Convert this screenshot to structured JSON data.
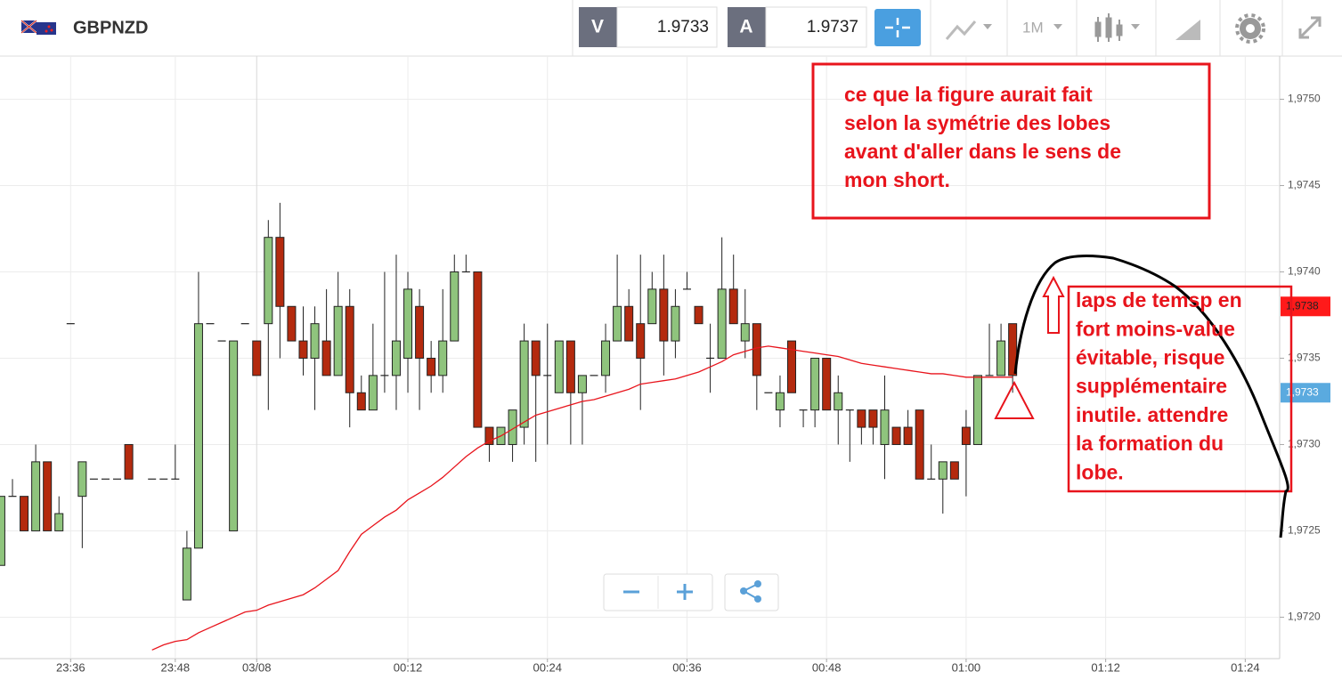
{
  "toolbar": {
    "symbol": "GBPNZD",
    "bid_label": "V",
    "bid": 1.9733,
    "ask_label": "A",
    "ask": 1.9737,
    "timeframe": "1M"
  },
  "chart_data": {
    "type": "candlestick",
    "categories": [
      null,
      null,
      null,
      null,
      null,
      null,
      "23:36",
      null,
      null,
      null,
      null,
      null,
      null,
      null,
      null,
      "23:48",
      null,
      null,
      null,
      null,
      null,
      null,
      "03/08",
      null,
      null,
      null,
      null,
      null,
      null,
      null,
      null,
      null,
      null,
      null,
      null,
      "00:12",
      null,
      null,
      null,
      null,
      null,
      null,
      null,
      null,
      null,
      null,
      null,
      "00:24",
      null,
      null,
      null,
      null,
      null,
      null,
      null,
      null,
      null,
      null,
      null,
      "00:36",
      null,
      null,
      null,
      null,
      null,
      null,
      null,
      null,
      null,
      null,
      null,
      "00:48",
      null,
      null,
      null,
      null,
      null,
      null,
      null,
      null,
      null,
      null,
      null,
      "01:00",
      null,
      null,
      null,
      null,
      null,
      null,
      null,
      null,
      null,
      null,
      null,
      "01:12",
      null,
      null,
      null,
      null,
      null,
      null,
      null,
      null,
      null,
      null,
      null,
      "01:24",
      null,
      null
    ],
    "ohlc": {
      "open": [
        1.9723,
        1.9727,
        1.9727,
        1.9725,
        1.9729,
        1.9725,
        1.9737,
        1.9727,
        1.9728,
        1.9728,
        1.9728,
        1.973,
        null,
        1.9728,
        1.9728,
        1.9728,
        1.9721,
        1.9724,
        1.9737,
        1.9736,
        1.9725,
        1.9737,
        1.9736,
        1.9737,
        1.9742,
        1.9738,
        1.9736,
        1.9735,
        1.9736,
        1.9734,
        1.9738,
        1.9733,
        1.9732,
        1.9734,
        1.9734,
        1.9735,
        1.9738,
        1.9735,
        1.9734,
        1.9736,
        1.974,
        1.974,
        1.9731,
        1.973,
        1.973,
        1.9731,
        1.9736,
        1.9734,
        1.9733,
        1.9736,
        1.9733,
        1.9734,
        1.9734,
        1.9736,
        1.9738,
        1.9737,
        1.9737,
        1.9739,
        1.9736,
        1.9739,
        1.9738,
        1.9735,
        1.9735,
        1.9739,
        1.9736,
        1.9737,
        1.9733,
        1.9732,
        1.9736,
        1.9732,
        1.9732,
        1.9735,
        1.9732,
        1.9732,
        1.9732,
        1.9732,
        1.973,
        1.9731,
        1.9731,
        1.9732,
        1.9728,
        1.9728,
        1.9729,
        1.9731,
        1.973,
        1.9734,
        1.9734,
        1.9737,
        null,
        null,
        null,
        null,
        null,
        null,
        null,
        null,
        null,
        null,
        null,
        null,
        null,
        null,
        null,
        null,
        null,
        null,
        null,
        null,
        null,
        null
      ],
      "high": [
        1.9727,
        1.9728,
        1.9727,
        1.973,
        1.9729,
        1.9727,
        1.9737,
        1.9729,
        1.9728,
        1.9728,
        1.9728,
        1.973,
        null,
        1.9728,
        1.9728,
        1.973,
        1.9725,
        1.974,
        1.9737,
        1.9736,
        1.9736,
        1.9737,
        1.9736,
        1.9743,
        1.9744,
        1.9738,
        1.9738,
        1.9738,
        1.9739,
        1.974,
        1.9739,
        1.9734,
        1.9737,
        1.974,
        1.9741,
        1.974,
        1.9739,
        1.9736,
        1.9739,
        1.9741,
        1.9741,
        1.974,
        1.9731,
        1.9731,
        1.9732,
        1.9737,
        1.9736,
        1.9737,
        1.9736,
        1.9736,
        1.9734,
        1.9734,
        1.9737,
        1.9741,
        1.9739,
        1.9741,
        1.974,
        1.9741,
        1.9739,
        1.974,
        1.9738,
        1.9737,
        1.9742,
        1.9741,
        1.9739,
        1.9737,
        1.9733,
        1.9734,
        1.9736,
        1.9732,
        1.9735,
        1.9735,
        1.9734,
        1.9732,
        1.9732,
        1.9732,
        1.9734,
        1.9731,
        1.9732,
        1.9732,
        1.973,
        1.9729,
        1.9729,
        1.9732,
        1.9734,
        1.9737,
        1.9737,
        1.9737,
        null,
        null,
        null,
        null,
        null,
        null,
        null,
        null,
        null,
        null,
        null,
        null,
        null,
        null,
        null,
        null,
        null,
        null,
        null,
        null,
        null,
        null
      ],
      "low": [
        1.9723,
        1.9727,
        1.9725,
        1.9725,
        1.9725,
        1.9725,
        1.9737,
        1.9724,
        1.9728,
        1.9728,
        1.9728,
        1.9728,
        null,
        1.9728,
        1.9728,
        1.9728,
        1.9721,
        1.9724,
        1.9737,
        1.9736,
        1.9725,
        1.9737,
        1.9734,
        1.9732,
        1.9735,
        1.9736,
        1.9734,
        1.9732,
        1.9734,
        1.9734,
        1.9731,
        1.9732,
        1.9732,
        1.9733,
        1.9732,
        1.9733,
        1.9732,
        1.9733,
        1.9733,
        1.9736,
        1.974,
        1.9731,
        1.9729,
        1.973,
        1.9729,
        1.973,
        1.9729,
        1.973,
        1.9733,
        1.973,
        1.973,
        1.9734,
        1.9733,
        1.9736,
        1.9736,
        1.9732,
        1.9737,
        1.9734,
        1.9735,
        1.9739,
        1.9737,
        1.9733,
        1.9735,
        1.9737,
        1.9735,
        1.9732,
        1.9733,
        1.9731,
        1.9733,
        1.9731,
        1.9731,
        1.9732,
        1.973,
        1.9729,
        1.973,
        1.973,
        1.9728,
        1.973,
        1.973,
        1.9728,
        1.9728,
        1.9726,
        1.9728,
        1.9727,
        1.973,
        1.9734,
        1.9734,
        1.9733,
        null,
        null,
        null,
        null,
        null,
        null,
        null,
        null,
        null,
        null,
        null,
        null,
        null,
        null,
        null,
        null,
        null,
        null,
        null,
        null,
        null,
        null
      ],
      "close": [
        1.9727,
        1.9727,
        1.9725,
        1.9729,
        1.9725,
        1.9726,
        1.9737,
        1.9729,
        1.9728,
        1.9728,
        1.9728,
        1.9728,
        null,
        1.9728,
        1.9728,
        1.9728,
        1.9724,
        1.9737,
        1.9737,
        1.9736,
        1.9736,
        1.9737,
        1.9734,
        1.9742,
        1.9738,
        1.9736,
        1.9735,
        1.9737,
        1.9734,
        1.9738,
        1.9733,
        1.9732,
        1.9734,
        1.9734,
        1.9736,
        1.9739,
        1.9735,
        1.9734,
        1.9736,
        1.974,
        1.974,
        1.9731,
        1.973,
        1.9731,
        1.9732,
        1.9736,
        1.9734,
        1.9734,
        1.9736,
        1.9733,
        1.9734,
        1.9734,
        1.9736,
        1.9738,
        1.9736,
        1.9735,
        1.9739,
        1.9736,
        1.9738,
        1.9739,
        1.9737,
        1.9735,
        1.9739,
        1.9737,
        1.9737,
        1.9734,
        1.9733,
        1.9733,
        1.9733,
        1.9732,
        1.9735,
        1.9732,
        1.9733,
        1.9732,
        1.9731,
        1.9731,
        1.9732,
        1.973,
        1.973,
        1.9728,
        1.9728,
        1.9729,
        1.9728,
        1.973,
        1.9734,
        1.9734,
        1.9736,
        1.9734,
        null,
        null,
        null,
        null,
        null,
        null,
        null,
        null,
        null,
        null,
        null,
        null,
        null,
        null,
        null,
        null,
        null,
        null,
        null,
        null,
        null,
        null
      ]
    },
    "up_color": "#8fc47d",
    "down_color": "#b42a0e",
    "moving_average": {
      "color": "#e8141c",
      "values": [
        null,
        null,
        null,
        null,
        null,
        null,
        null,
        null,
        null,
        null,
        null,
        null,
        null,
        1.97181,
        1.97184,
        1.97186,
        1.97187,
        1.97191,
        1.97194,
        1.97197,
        1.972,
        1.97203,
        1.97204,
        1.97207,
        1.97209,
        1.97211,
        1.97213,
        1.97217,
        1.97222,
        1.97227,
        1.97238,
        1.97248,
        1.97253,
        1.97258,
        1.97262,
        1.97268,
        1.97272,
        1.97276,
        1.97281,
        1.97287,
        1.97293,
        1.97298,
        1.97302,
        1.97305,
        1.97309,
        1.97313,
        1.97317,
        1.97319,
        1.97321,
        1.97323,
        1.97325,
        1.97326,
        1.97328,
        1.9733,
        1.97332,
        1.97335,
        1.97336,
        1.97337,
        1.97338,
        1.9734,
        1.97342,
        1.97345,
        1.97348,
        1.97352,
        1.97354,
        1.97356,
        1.97357,
        1.97356,
        1.97355,
        1.97354,
        1.97353,
        1.97352,
        1.97351,
        1.97349,
        1.97347,
        1.97346,
        1.97345,
        1.97344,
        1.97343,
        1.97342,
        1.97341,
        1.97341,
        1.9734,
        1.97339,
        1.97339,
        1.97339,
        1.97339,
        1.97339,
        null,
        null,
        null,
        null,
        null,
        null,
        null,
        null,
        null,
        null,
        null,
        null,
        null,
        null,
        null,
        null,
        null,
        null,
        null,
        null,
        null,
        null
      ]
    },
    "ylim": [
      1.97176,
      1.97525
    ],
    "yticks": [
      {
        "value": 1.972,
        "label": "1,9720"
      },
      {
        "value": 1.9725,
        "label": "1,9725"
      },
      {
        "value": 1.973,
        "label": "1,9730"
      },
      {
        "value": 1.9735,
        "label": "1,9735"
      },
      {
        "value": 1.974,
        "label": "1,9740"
      },
      {
        "value": 1.9745,
        "label": "1,9745"
      },
      {
        "value": 1.975,
        "label": "1,9750"
      }
    ],
    "grid": true,
    "price_markers": [
      {
        "value": 1.9738,
        "label": "1,9738",
        "color": "#ff1a1a"
      },
      {
        "value": 1.9733,
        "label": "1,9733",
        "color": "#5aaadf"
      }
    ],
    "annotations": [
      {
        "lines": [
          "ce que la figure aurait fait",
          "selon la symétrie des lobes",
          "avant d'aller dans le sens de",
          "mon short."
        ]
      },
      {
        "lines": [
          "laps de temsp en",
          "fort moins-value",
          "évitable, risque",
          "supplémentaire",
          "inutile. attendre",
          "la formation du",
          "lobe."
        ]
      }
    ]
  }
}
